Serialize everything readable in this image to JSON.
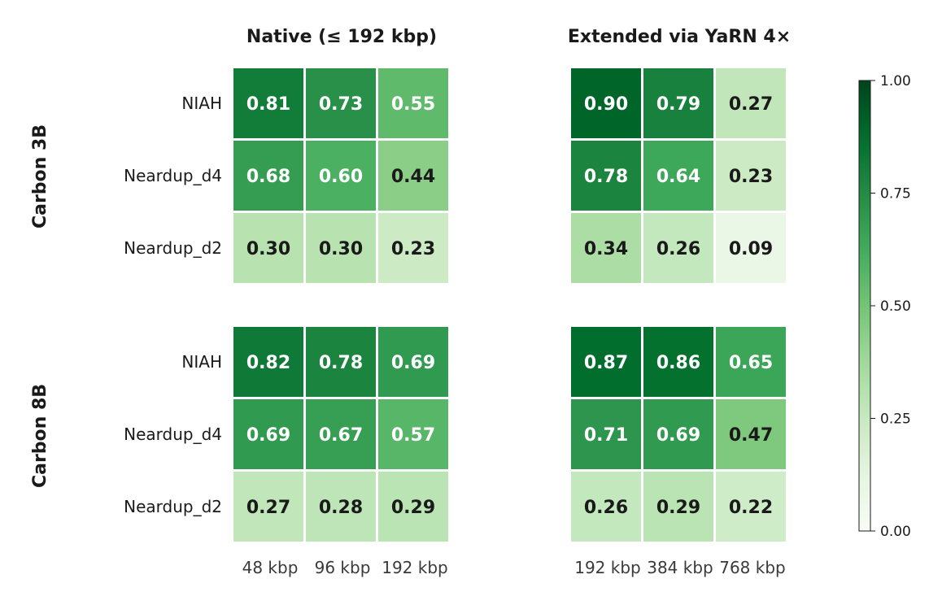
{
  "chart_data": {
    "type": "heatmap",
    "panel_titles": [
      "Native (≤ 192 kbp)",
      "Extended via YaRN 4×"
    ],
    "row_groups": [
      "Carbon 3B",
      "Carbon 8B"
    ],
    "row_labels": [
      "NIAH",
      "Neardup_d4",
      "Neardup_d2"
    ],
    "column_labels": [
      [
        "48 kbp",
        "96 kbp",
        "192 kbp"
      ],
      [
        "192 kbp",
        "384 kbp",
        "768 kbp"
      ]
    ],
    "values": {
      "Carbon 3B": {
        "Native": [
          [
            0.81,
            0.73,
            0.55
          ],
          [
            0.68,
            0.6,
            0.44
          ],
          [
            0.3,
            0.3,
            0.23
          ]
        ],
        "Extended": [
          [
            0.9,
            0.79,
            0.27
          ],
          [
            0.78,
            0.64,
            0.23
          ],
          [
            0.34,
            0.26,
            0.09
          ]
        ]
      },
      "Carbon 8B": {
        "Native": [
          [
            0.82,
            0.78,
            0.69
          ],
          [
            0.69,
            0.67,
            0.57
          ],
          [
            0.27,
            0.28,
            0.29
          ]
        ],
        "Extended": [
          [
            0.87,
            0.86,
            0.65
          ],
          [
            0.71,
            0.69,
            0.47
          ],
          [
            0.26,
            0.29,
            0.22
          ]
        ]
      }
    },
    "colorbar": {
      "range": [
        0.0,
        1.0
      ],
      "ticks": [
        "0.00",
        "0.25",
        "0.50",
        "0.75",
        "1.00"
      ],
      "colormap": "Greens"
    },
    "colors": {
      "low": "#f7fcf5",
      "high": "#00441b",
      "text_dark": "#1a1a1a",
      "text_light": "#ffffff"
    }
  }
}
